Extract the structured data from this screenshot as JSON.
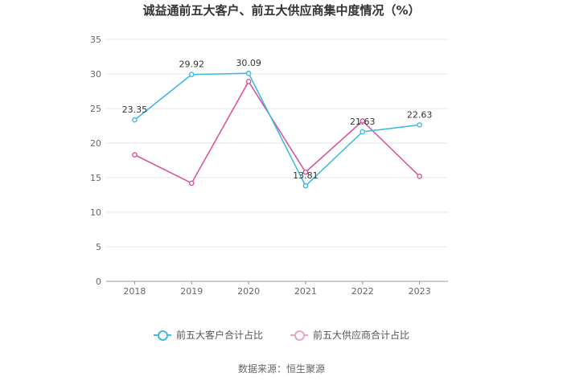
{
  "title": "诚益通前五大客户、前五大供应商集中度情况（%）",
  "source": "数据来源：恒生聚源",
  "colors": {
    "customer": "#3fb9e6",
    "supplier": "#d9559d",
    "grid": "#e6e6e6",
    "axis": "#999999"
  },
  "chart_data": {
    "type": "line",
    "title": "诚益通前五大客户、前五大供应商集中度情况（%）",
    "categories": [
      "2018",
      "2019",
      "2020",
      "2021",
      "2022",
      "2023"
    ],
    "ylim": [
      0,
      35
    ],
    "yticks": [
      "0",
      "5",
      "10",
      "15",
      "20",
      "25",
      "30",
      "35"
    ],
    "grid": true,
    "legend_position": "bottom",
    "series": [
      {
        "name": "前五大客户合计占比",
        "values": [
          23.35,
          29.92,
          30.09,
          13.81,
          21.63,
          22.63
        ],
        "labels": [
          "23.35",
          "29.92",
          "30.09",
          "13.81",
          "21.63",
          "22.63"
        ]
      },
      {
        "name": "前五大供应商合计占比",
        "values": [
          18.3,
          14.2,
          28.9,
          15.8,
          23.2,
          15.2
        ]
      }
    ]
  }
}
